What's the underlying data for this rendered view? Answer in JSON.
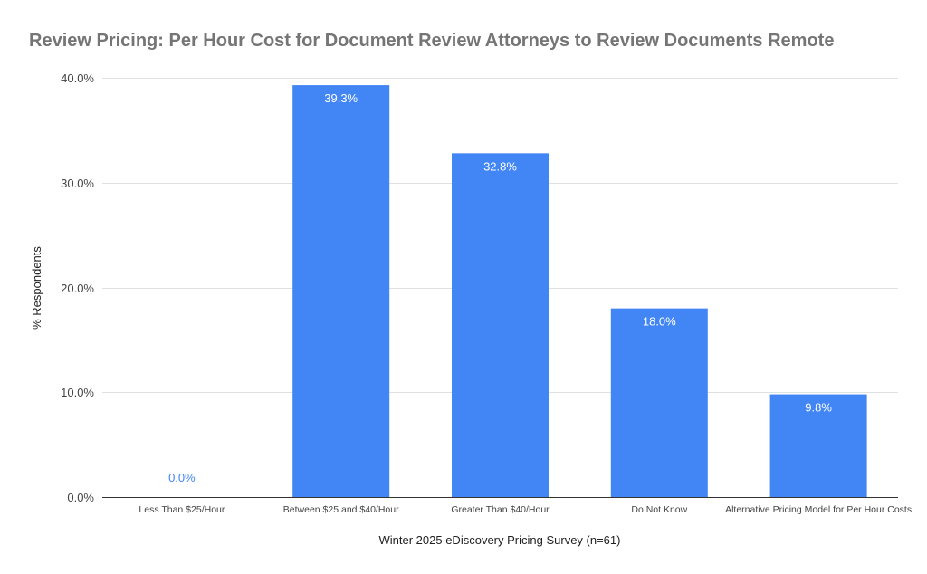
{
  "chart_data": {
    "type": "bar",
    "title": "Review Pricing: Per Hour Cost for Document Review Attorneys to Review Documents Remote",
    "xlabel": "Winter 2025 eDiscovery Pricing Survey (n=61)",
    "ylabel": "% Respondents",
    "categories": [
      "Less Than $25/Hour",
      "Between $25 and $40/Hour",
      "Greater Than $40/Hour",
      "Do Not Know",
      "Alternative Pricing Model for Per Hour Costs"
    ],
    "values": [
      0.0,
      39.3,
      32.8,
      18.0,
      9.8
    ],
    "data_labels": [
      "0.0%",
      "39.3%",
      "32.8%",
      "18.0%",
      "9.8%"
    ],
    "ylim": [
      0,
      40
    ],
    "yticks": [
      0,
      10,
      20,
      30,
      40
    ],
    "ytick_labels": [
      "0.0%",
      "10.0%",
      "20.0%",
      "30.0%",
      "40.0%"
    ],
    "grid": true,
    "legend": "none",
    "colors": {
      "bar": "#4285f4",
      "title": "#757575",
      "inside_label": "#ffffff",
      "outside_label": "#4285f4"
    }
  }
}
